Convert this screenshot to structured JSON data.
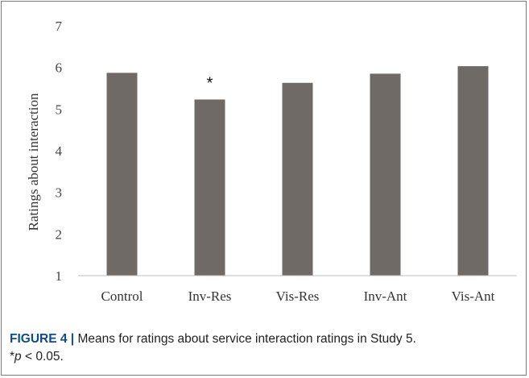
{
  "chart_data": {
    "type": "bar",
    "title": "",
    "xlabel": "",
    "ylabel": "Ratings about interaction",
    "categories": [
      "Control",
      "Inv-Res",
      "Vis-Res",
      "Inv-Ant",
      "Vis-Ant"
    ],
    "values": [
      5.87,
      5.23,
      5.63,
      5.85,
      6.03
    ],
    "ylim": [
      1,
      7
    ],
    "yticks": [
      1,
      2,
      3,
      4,
      5,
      6,
      7
    ],
    "bar_color": "#706a67",
    "grid": false,
    "annotations": [
      {
        "category": "Inv-Res",
        "text": "*"
      }
    ]
  },
  "caption": {
    "label": "FIGURE 4 |",
    "text": " Means for ratings about service interaction ratings in Study 5.",
    "sig_star": "*",
    "sig_p": "p",
    "sig_rest": " < 0.05."
  }
}
